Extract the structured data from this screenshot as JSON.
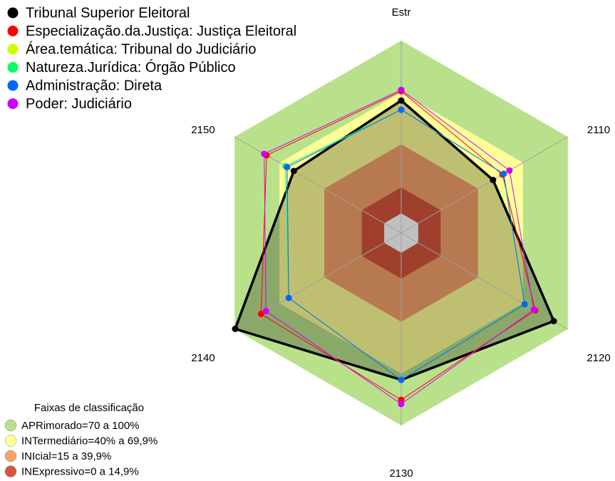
{
  "chart_data": {
    "type": "radar",
    "categories": [
      "Estr",
      "2110",
      "2120",
      "2130",
      "2140",
      "2150"
    ],
    "rlim": [
      0,
      100
    ],
    "band_title": "Faixas de classificação",
    "bands": [
      {
        "label": "APRimorado=70 a 100%",
        "from": 70,
        "to": 100,
        "color": "#b9e18b"
      },
      {
        "label": "INTermediário=40% a 69,9%",
        "from": 40,
        "to": 70,
        "color": "#ffff99"
      },
      {
        "label": "INIcial=15 a 39,9%",
        "from": 15,
        "to": 40,
        "color": "#f5a36b"
      },
      {
        "label": "INExpressivo=0 a 14,9%",
        "from": 0,
        "to": 15,
        "color": "#d4563f"
      }
    ],
    "series": [
      {
        "name": "Tribunal Superior Eleitoral",
        "color": "#000000",
        "values": [
          65.3,
          50,
          90.6,
          73.6,
          99.6,
          60.4
        ]
      },
      {
        "name": "Especialização.da.Justiça: Justiça Eleitoral",
        "color": "#ff0000",
        "values": [
          70.7,
          56.3,
          78.2,
          85.2,
          82.3,
          78.6
        ]
      },
      {
        "name": "Área.temática: Tribunal do Judiciário",
        "color": "#ccff00",
        "values": [
          60,
          57.1,
          71.1,
          73.6,
          63.8,
          66
        ]
      },
      {
        "name": "Natureza.Jurídica: Órgão Público",
        "color": "#00ff66",
        "values": [
          60,
          57.1,
          71.1,
          73.6,
          63.8,
          66
        ]
      },
      {
        "name": "Administração: Direta",
        "color": "#0066ff",
        "values": [
          60,
          57.1,
          71.1,
          73.6,
          63.8,
          64.9
        ]
      },
      {
        "name": "Poder: Judiciário",
        "color": "#cc00ff",
        "values": [
          71.5,
          61,
          77.3,
          87.6,
          79,
          80.2
        ]
      }
    ]
  }
}
